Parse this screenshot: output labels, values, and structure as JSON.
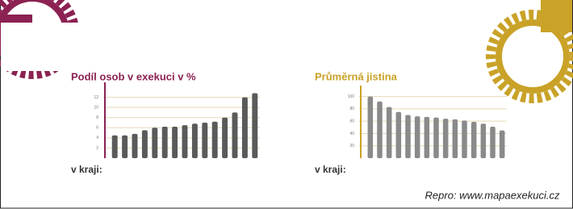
{
  "charts": [
    {
      "type": "bar",
      "title": "Podíl osob v exekuci v %",
      "x_label": "v kraji:",
      "color": "#5a5a5a",
      "accent": "#8b2252",
      "categories": [
        null,
        null,
        null,
        null,
        null,
        null,
        null,
        null,
        null,
        null,
        null,
        null,
        null,
        null,
        null
      ],
      "values": [
        4.5,
        4.5,
        4.8,
        5.5,
        6,
        6.2,
        6.2,
        6.5,
        6.8,
        7,
        7.2,
        8,
        9,
        12,
        12.8
      ],
      "ylim": [
        0,
        14
      ],
      "yticks": [
        2,
        4,
        6,
        8,
        10,
        12
      ],
      "grid": true
    },
    {
      "type": "bar",
      "title": "Průměrná jistina",
      "x_label": "v kraji:",
      "color": "#8a8a8a",
      "accent": "#c9a227",
      "categories": [
        null,
        null,
        null,
        null,
        null,
        null,
        null,
        null,
        null,
        null,
        null,
        null,
        null,
        null,
        null
      ],
      "values": [
        100,
        92,
        83,
        75,
        70,
        68,
        67,
        66,
        64,
        63,
        61,
        59,
        56,
        51,
        45
      ],
      "ylim": [
        0,
        110
      ],
      "yticks": [
        20,
        40,
        60,
        80,
        100
      ],
      "grid": true
    }
  ],
  "credit": "Repro: www.mapaexekuci.cz"
}
